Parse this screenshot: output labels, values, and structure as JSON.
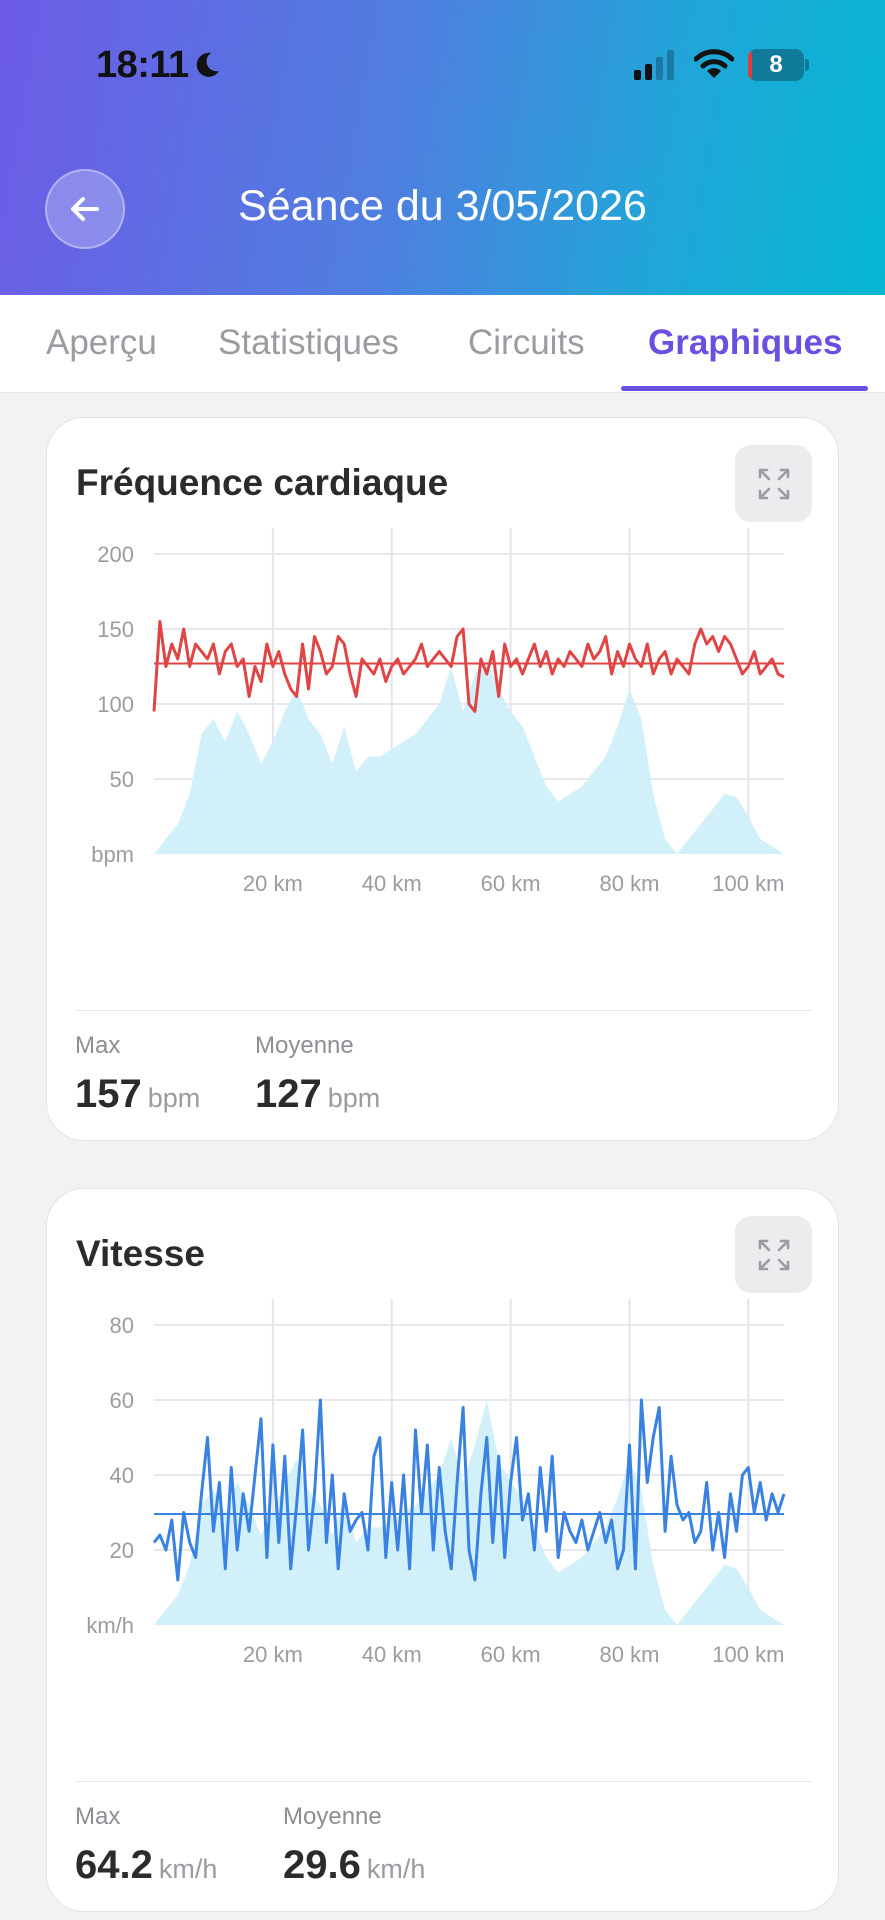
{
  "status_bar": {
    "time": "18:11",
    "battery": "8",
    "battery_level": 0.08
  },
  "header": {
    "title": "Séance du 3/05/2026",
    "back_icon": "arrow-left-icon"
  },
  "tabs": [
    {
      "label": "Aperçu"
    },
    {
      "label": "Statistiques"
    },
    {
      "label": "Circuits"
    },
    {
      "label": "Graphiques",
      "active": true
    }
  ],
  "colors": {
    "accent": "#6a4fe0",
    "heart_rate": "#e04545",
    "speed": "#3a82e2",
    "elevation": "#cdeefa"
  },
  "heart_rate_card": {
    "title": "Fréquence cardiaque",
    "expand_icon": "expand-icon",
    "stats": [
      {
        "label": "Max",
        "value": "157",
        "unit": "bpm"
      },
      {
        "label": "Moyenne",
        "value": "127",
        "unit": "bpm"
      }
    ]
  },
  "speed_card": {
    "title": "Vitesse",
    "expand_icon": "expand-icon",
    "stats": [
      {
        "label": "Max",
        "value": "64.2",
        "unit": "km/h"
      },
      {
        "label": "Moyenne",
        "value": "29.6",
        "unit": "km/h"
      }
    ]
  },
  "chart_data": [
    {
      "type": "line",
      "x_unit": "km",
      "xlim": [
        0,
        106
      ],
      "x_ticks": [
        "20 km",
        "40 km",
        "60 km",
        "80 km",
        "100 km"
      ],
      "x_tick_values": [
        20,
        40,
        60,
        80,
        100
      ],
      "ylim": [
        0,
        200
      ],
      "y_ticks": [
        "200",
        "150",
        "100",
        "50",
        "bpm"
      ],
      "y_tick_values": [
        200,
        150,
        100,
        50,
        0
      ],
      "average_line": 127,
      "grid": true,
      "background_area": {
        "x": [
          0,
          4,
          6,
          8,
          10,
          12,
          14,
          16,
          18,
          20,
          22,
          24,
          26,
          28,
          30,
          32,
          34,
          36,
          38,
          40,
          42,
          44,
          46,
          48,
          50,
          52,
          54,
          56,
          58,
          60,
          62,
          64,
          66,
          68,
          70,
          72,
          74,
          76,
          78,
          80,
          82,
          84,
          86,
          88,
          90,
          92,
          94,
          96,
          98,
          100,
          102,
          104,
          106
        ],
        "y": [
          0,
          20,
          40,
          80,
          90,
          75,
          95,
          80,
          60,
          75,
          95,
          110,
          90,
          80,
          60,
          85,
          55,
          65,
          65,
          70,
          75,
          80,
          90,
          100,
          125,
          95,
          120,
          130,
          110,
          95,
          85,
          65,
          45,
          35,
          40,
          45,
          55,
          65,
          85,
          110,
          90,
          40,
          10,
          0,
          10,
          20,
          30,
          40,
          38,
          25,
          10,
          5,
          0
        ]
      },
      "series": {
        "x": [
          0,
          1,
          2,
          3,
          4,
          5,
          6,
          7,
          8,
          9,
          10,
          11,
          12,
          13,
          14,
          15,
          16,
          17,
          18,
          19,
          20,
          21,
          22,
          23,
          24,
          25,
          26,
          27,
          28,
          29,
          30,
          31,
          32,
          33,
          34,
          35,
          36,
          37,
          38,
          39,
          40,
          41,
          42,
          43,
          44,
          45,
          46,
          47,
          48,
          49,
          50,
          51,
          52,
          53,
          54,
          55,
          56,
          57,
          58,
          59,
          60,
          61,
          62,
          63,
          64,
          65,
          66,
          67,
          68,
          69,
          70,
          71,
          72,
          73,
          74,
          75,
          76,
          77,
          78,
          79,
          80,
          81,
          82,
          83,
          84,
          85,
          86,
          87,
          88,
          89,
          90,
          91,
          92,
          93,
          94,
          95,
          96,
          97,
          98,
          99,
          100,
          101,
          102,
          103,
          104,
          105,
          106
        ],
        "y": [
          95,
          155,
          125,
          140,
          130,
          150,
          125,
          140,
          135,
          130,
          140,
          120,
          135,
          140,
          125,
          130,
          105,
          125,
          115,
          140,
          125,
          135,
          120,
          110,
          105,
          140,
          110,
          145,
          135,
          120,
          125,
          145,
          140,
          120,
          105,
          130,
          125,
          120,
          130,
          115,
          125,
          130,
          120,
          125,
          130,
          140,
          125,
          130,
          135,
          130,
          125,
          145,
          150,
          100,
          95,
          130,
          120,
          135,
          105,
          140,
          125,
          130,
          120,
          130,
          140,
          125,
          135,
          120,
          130,
          125,
          135,
          130,
          125,
          140,
          130,
          135,
          145,
          120,
          135,
          125,
          140,
          130,
          125,
          140,
          120,
          130,
          135,
          120,
          130,
          125,
          120,
          140,
          150,
          140,
          145,
          135,
          145,
          140,
          130,
          120,
          125,
          135,
          120,
          125,
          130,
          120,
          118
        ]
      }
    },
    {
      "type": "line",
      "x_unit": "km",
      "xlim": [
        0,
        106
      ],
      "x_ticks": [
        "20 km",
        "40 km",
        "60 km",
        "80 km",
        "100 km"
      ],
      "x_tick_values": [
        20,
        40,
        60,
        80,
        100
      ],
      "ylim": [
        0,
        80
      ],
      "y_ticks": [
        "80",
        "60",
        "40",
        "20",
        "km/h"
      ],
      "y_tick_values": [
        80,
        60,
        40,
        20,
        0
      ],
      "average_line": 29.6,
      "grid": true,
      "background_area": {
        "x": [
          0,
          4,
          6,
          8,
          10,
          12,
          14,
          16,
          18,
          20,
          22,
          24,
          26,
          28,
          30,
          32,
          34,
          36,
          38,
          40,
          42,
          44,
          46,
          48,
          50,
          52,
          54,
          56,
          58,
          60,
          62,
          64,
          66,
          68,
          70,
          72,
          74,
          76,
          78,
          80,
          82,
          84,
          86,
          88,
          90,
          92,
          94,
          96,
          98,
          100,
          102,
          104,
          106
        ],
        "y": [
          0,
          8,
          16,
          32,
          36,
          30,
          38,
          32,
          24,
          30,
          38,
          44,
          36,
          32,
          24,
          34,
          22,
          26,
          26,
          28,
          30,
          32,
          36,
          40,
          50,
          38,
          48,
          60,
          44,
          38,
          34,
          26,
          18,
          14,
          16,
          18,
          22,
          26,
          34,
          44,
          36,
          16,
          4,
          0,
          4,
          8,
          12,
          16,
          15,
          10,
          4,
          2,
          0
        ]
      },
      "series": {
        "x": [
          0,
          1,
          2,
          3,
          4,
          5,
          6,
          7,
          8,
          9,
          10,
          11,
          12,
          13,
          14,
          15,
          16,
          17,
          18,
          19,
          20,
          21,
          22,
          23,
          24,
          25,
          26,
          27,
          28,
          29,
          30,
          31,
          32,
          33,
          34,
          35,
          36,
          37,
          38,
          39,
          40,
          41,
          42,
          43,
          44,
          45,
          46,
          47,
          48,
          49,
          50,
          51,
          52,
          53,
          54,
          55,
          56,
          57,
          58,
          59,
          60,
          61,
          62,
          63,
          64,
          65,
          66,
          67,
          68,
          69,
          70,
          71,
          72,
          73,
          74,
          75,
          76,
          77,
          78,
          79,
          80,
          81,
          82,
          83,
          84,
          85,
          86,
          87,
          88,
          89,
          90,
          91,
          92,
          93,
          94,
          95,
          96,
          97,
          98,
          99,
          100,
          101,
          102,
          103,
          104,
          105,
          106
        ],
        "y": [
          22,
          24,
          20,
          28,
          12,
          30,
          22,
          18,
          35,
          50,
          25,
          38,
          15,
          42,
          20,
          35,
          25,
          40,
          55,
          18,
          48,
          22,
          45,
          15,
          32,
          52,
          20,
          35,
          60,
          22,
          40,
          15,
          35,
          25,
          28,
          30,
          20,
          45,
          50,
          18,
          38,
          20,
          40,
          15,
          52,
          30,
          48,
          20,
          42,
          25,
          15,
          38,
          58,
          20,
          12,
          35,
          50,
          22,
          45,
          18,
          38,
          50,
          28,
          35,
          20,
          42,
          25,
          45,
          18,
          30,
          25,
          22,
          28,
          20,
          25,
          30,
          22,
          28,
          15,
          20,
          48,
          15,
          60,
          38,
          50,
          58,
          25,
          45,
          32,
          28,
          30,
          22,
          25,
          38,
          20,
          30,
          18,
          35,
          25,
          40,
          42,
          30,
          38,
          28,
          35,
          30,
          35
        ]
      }
    }
  ]
}
